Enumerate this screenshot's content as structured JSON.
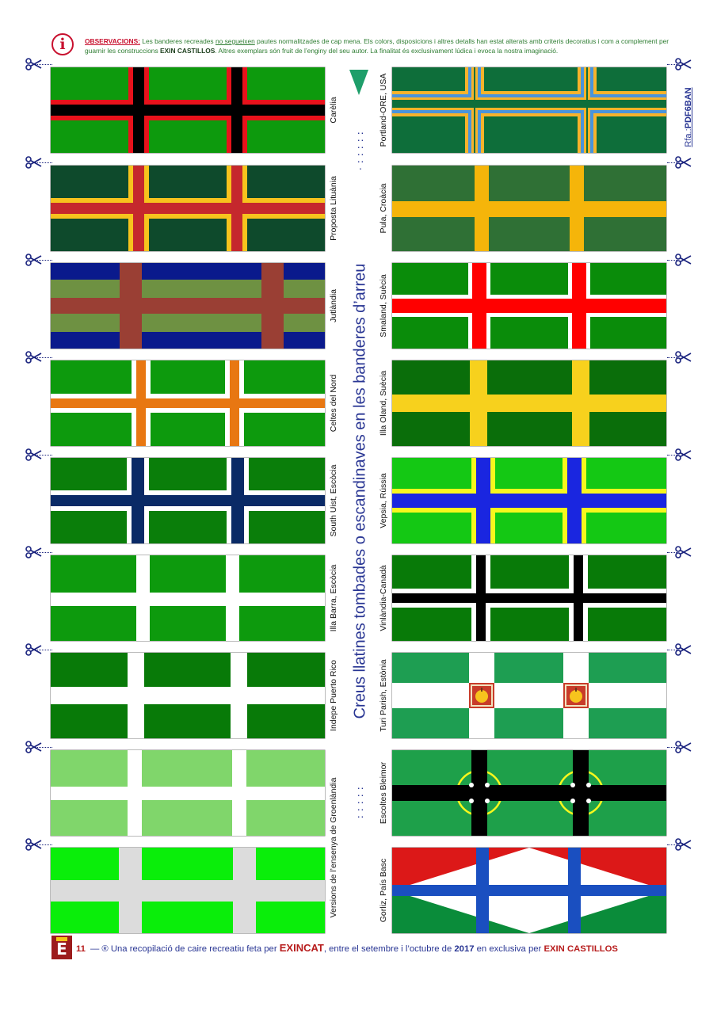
{
  "header": {
    "label": "OBSERVACIONS:",
    "t1": " Les banderes recreades ",
    "t2": "no segueixen",
    "t3": " pautes normalitzades de cap mena. Els colors, disposicions i altres detalls han estat alterats amb criteris decoratius i com a complement per guarnir les construccions ",
    "brand": "EXIN CASTILLOS",
    "t4": ". Altres exemplars són fruit de l’enginy del seu autor. La finalitat és exclusivament lúdica i evoca la nostra imaginació.",
    "icon": "info-icon"
  },
  "title": "Creus llatines tombades o escandinaves en les banderes d’arreu",
  "reference": {
    "prefix": "Rfa.:",
    "code": "PDF6BAN"
  },
  "flags": {
    "left": [
      {
        "label": "Carèlia",
        "colors": {
          "bg": "#0d9a0d",
          "fim": "#e8121b",
          "cross": "#000000"
        }
      },
      {
        "label": "Proposta Lituània",
        "colors": {
          "bg": "#0e4a2c",
          "fim": "#f7c31d",
          "cross": "#c5282d"
        }
      },
      {
        "label": "Jutlàndia",
        "colors": {
          "stripe": "#0a1a8c",
          "bg": "#6e9142",
          "cross": "#9a3f34"
        }
      },
      {
        "label": "Celtes del Nord",
        "colors": {
          "bg": "#0d9a0d",
          "fim": "#ffffff",
          "cross": "#e87712"
        }
      },
      {
        "label": "South Uist, Escòcia",
        "colors": {
          "bg": "#0a7e0a",
          "fim": "#ffffff",
          "cross": "#0a2a66"
        }
      },
      {
        "label": "Illa Barra, Escòcia",
        "colors": {
          "bg": "#0d9a0d",
          "cross": "#ffffff"
        }
      },
      {
        "label": "Indepe Puerto Rico",
        "colors": {
          "bg": "#087a08",
          "cross": "#ffffff"
        }
      },
      {
        "label": "Versions de l’ensenya de Groenlàndia",
        "colors": {
          "bg": "#80d66b",
          "cross": "#ffffff"
        }
      },
      {
        "label": "Versions de l’ensenya de Groenlàndia",
        "colors": {
          "bg": "#0aee0a",
          "cross": "#dcdcdc"
        }
      }
    ],
    "right": [
      {
        "label": "Portland-ORE, USA",
        "colors": {
          "bg": "#0e6e3a",
          "fim": "#f7b32b",
          "cross": "#4a94db"
        }
      },
      {
        "label": "Pula, Croàcia",
        "colors": {
          "bg": "#2f7035",
          "cross": "#f5b50a"
        }
      },
      {
        "label": "Smaland, Suècia",
        "colors": {
          "bg": "#0a8c0a",
          "fim": "#ffffff",
          "cross": "#ff0000"
        }
      },
      {
        "label": "Illa Oland, Suècia",
        "colors": {
          "bg": "#0a6e0a",
          "cross": "#f7d11d"
        }
      },
      {
        "label": "Vepsia, Rússia",
        "colors": {
          "bg": "#14c814",
          "fim": "#f7f71d",
          "cross": "#1a26e0"
        }
      },
      {
        "label": "Vinlàndia-Canadà",
        "colors": {
          "bg": "#087a08",
          "fim": "#ffffff",
          "cross": "#000000"
        }
      },
      {
        "label": "Turi Parish, Estònia",
        "colors": {
          "bg": "#1e9e52",
          "cross": "#ffffff",
          "emblem": "#c83c2a",
          "apple": "#f7c31d"
        }
      },
      {
        "label": "Escoltes Bleimor",
        "colors": {
          "bg": "#1ea04a",
          "cross": "#000000",
          "ring": "#f7f71d",
          "dot": "#ffffff"
        }
      },
      {
        "label": "Gorliz, País Basc",
        "colors": {
          "top": "#dc1818",
          "bottom": "#0a8c3a",
          "diamond": "#ffffff",
          "cross": "#1a4fc0"
        }
      }
    ]
  },
  "footer": {
    "page": "11",
    "dash": "—",
    "reg": "®",
    "t1": " Una recopilació de caire recreatiu feta per ",
    "brand": "EXINCAT",
    "t2": ", entre el setembre i l’octubre de ",
    "year": "2017",
    "t3": " en exclusiva per ",
    "brand2": "EXIN CASTILLOS",
    "logo_letter": "E"
  }
}
